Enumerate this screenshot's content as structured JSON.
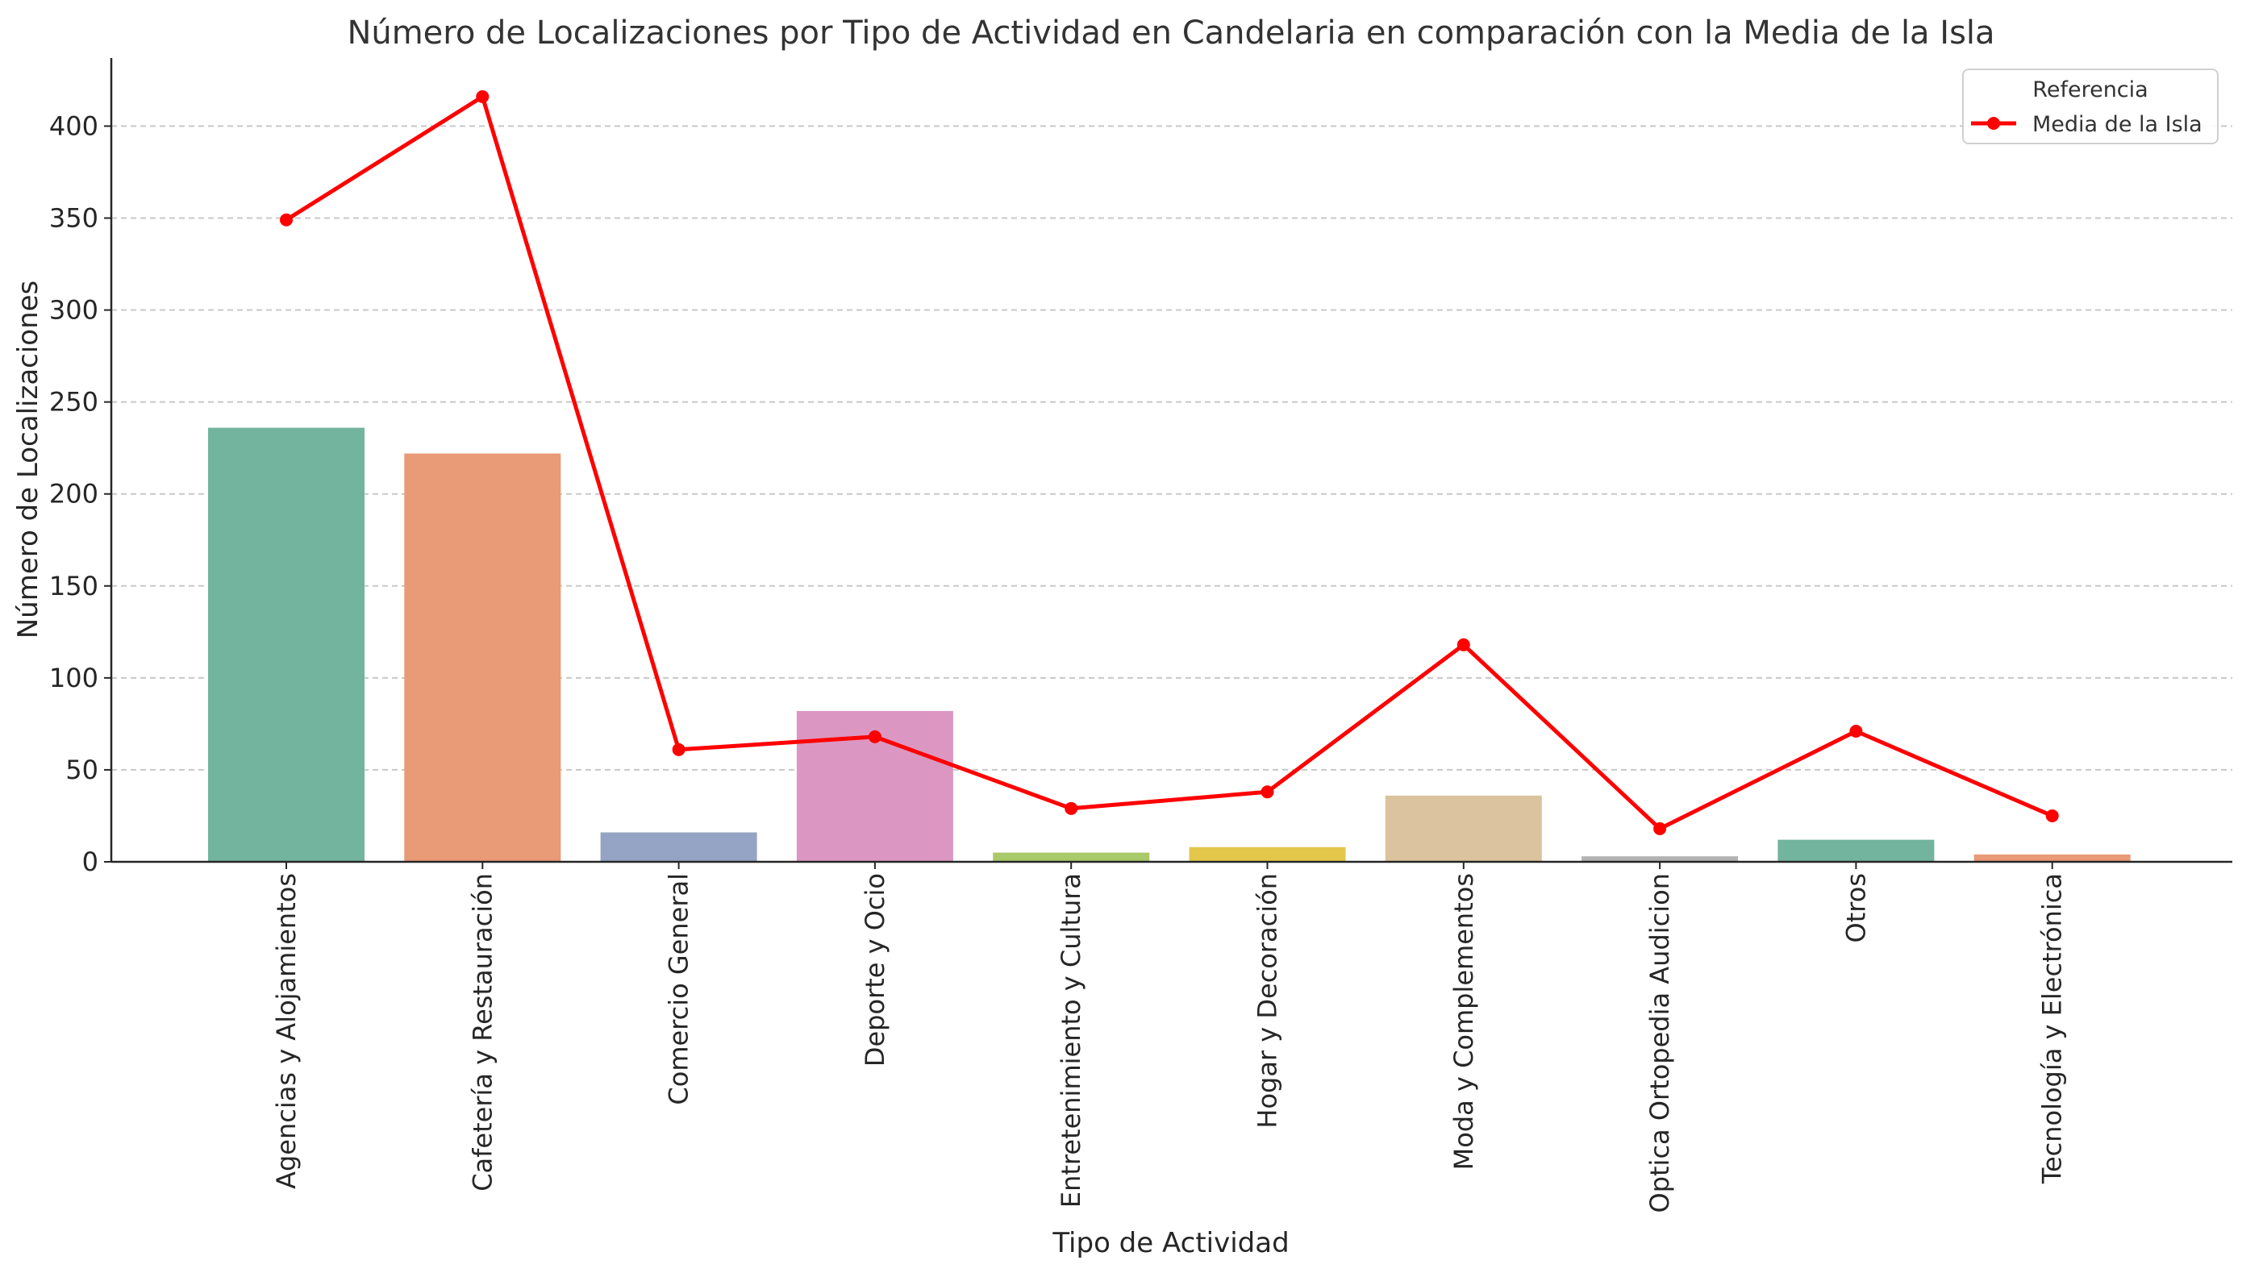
{
  "chart_data": {
    "type": "bar",
    "title": "Número de Localizaciones por Tipo de Actividad en Candelaria en comparación con la Media de la Isla",
    "xlabel": "Tipo de Actividad",
    "ylabel": "Número de Localizaciones",
    "ylim": [
      0,
      437
    ],
    "yticks": [
      0,
      50,
      100,
      150,
      200,
      250,
      300,
      350,
      400
    ],
    "grid": "horizontal dashed",
    "categories": [
      "Agencias y Alojamientos",
      "Cafetería y Restauración",
      "Comercio General",
      "Deporte y Ocio",
      "Entretenimiento y Cultura",
      "Hogar y Decoración",
      "Moda y Complementos",
      "Optica Ortopedia Audicion",
      "Otros",
      "Tecnología y Electrónica"
    ],
    "values": [
      236,
      222,
      16,
      82,
      5,
      8,
      36,
      3,
      12,
      4
    ],
    "bar_colors": [
      "#72b49e",
      "#e99a76",
      "#95a4c4",
      "#db97c1",
      "#a9c96a",
      "#e3c74a",
      "#dbc39f",
      "#b2b2b2",
      "#72b49e",
      "#e99a76"
    ],
    "line_series": {
      "name": "Media de la Isla",
      "color": "#ff0000",
      "values": [
        349,
        416,
        61,
        68,
        29,
        38,
        118,
        18,
        71,
        25
      ]
    },
    "legend": {
      "title": "Referencia",
      "placement": "top-right"
    }
  }
}
